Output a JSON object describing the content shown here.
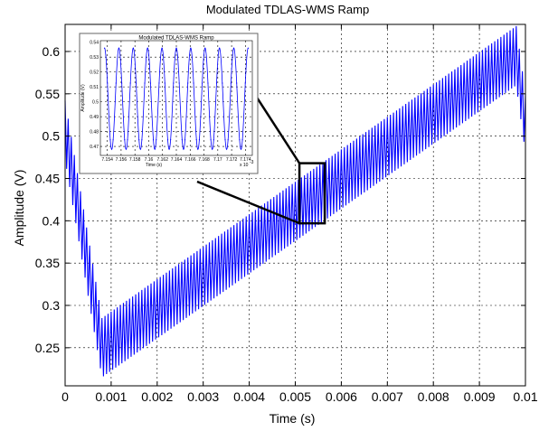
{
  "chart_data": {
    "type": "line",
    "title": "Modulated TDLAS-WMS Ramp",
    "xlabel": "Time (s)",
    "ylabel": "Amplitude (V)",
    "xlim": [
      0,
      0.01
    ],
    "ylim": [
      0.205,
      0.632
    ],
    "x_ticks": [
      "0",
      "0.001",
      "0.002",
      "0.003",
      "0.004",
      "0.005",
      "0.006",
      "0.007",
      "0.008",
      "0.009",
      "0.01"
    ],
    "y_ticks": [
      "0.25",
      "0.3",
      "0.35",
      "0.4",
      "0.45",
      "0.5",
      "0.55",
      "0.6"
    ],
    "grid": true,
    "series": [
      {
        "color": "#0000ff",
        "modulation_amplitude": 0.035,
        "ramp_x": [
          0,
          0.0008,
          0.0098,
          0.01
        ],
        "ramp_y": [
          0.507,
          0.25,
          0.595,
          0.515
        ],
        "cycles": 150
      }
    ],
    "zoom_box": {
      "x": [
        0.00509,
        0.00564
      ],
      "y": [
        0.397,
        0.468
      ]
    },
    "inset": {
      "title": "Modulated TDLAS-WMS Ramp",
      "xlabel": "Time (s)",
      "ylabel": "Amplitude (V)",
      "x_ticks": [
        "7.154",
        "7.156",
        "7.158",
        "7.16",
        "7.162",
        "7.164",
        "7.166",
        "7.168",
        "7.17",
        "7.172",
        "7.174"
      ],
      "x_exponent": "x 10",
      "x_exponent_power": "-3",
      "y_ticks": [
        "0.53",
        "0.52",
        "0.51",
        "0.5",
        "0.49",
        "0.48",
        "0.47"
      ],
      "y_top_tick": "0.54",
      "xlim": [
        7.153,
        7.175
      ],
      "ylim": [
        0.464,
        0.541
      ],
      "periods": 10,
      "peak": 0.536,
      "trough": 0.468
    }
  }
}
